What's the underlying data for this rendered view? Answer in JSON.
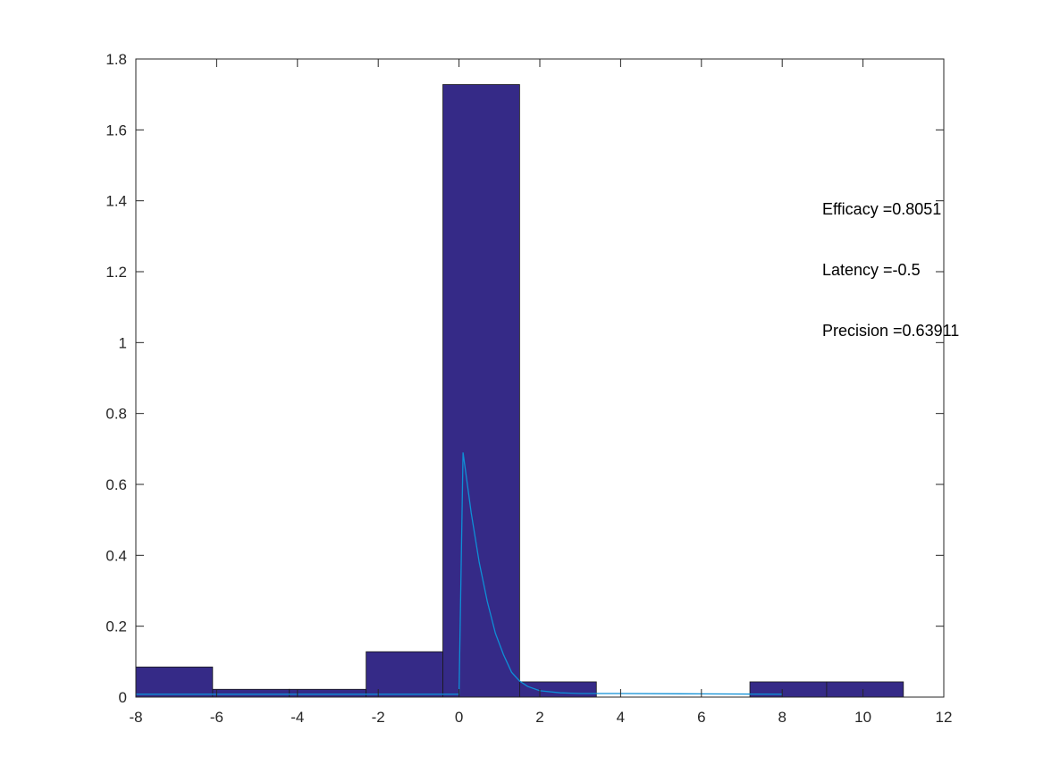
{
  "chart_data": {
    "type": "bar",
    "title": "",
    "xlabel": "",
    "ylabel": "",
    "xlim": [
      -8,
      12
    ],
    "ylim": [
      0,
      1.8
    ],
    "xticks": [
      -8,
      -6,
      -4,
      -2,
      0,
      2,
      4,
      6,
      8,
      10,
      12
    ],
    "xtick_labels": [
      "-8",
      "-6",
      "-4",
      "-2",
      "0",
      "2",
      "4",
      "6",
      "8",
      "10",
      "12"
    ],
    "yticks": [
      0,
      0.2,
      0.4,
      0.6,
      0.8,
      1.0,
      1.2,
      1.4,
      1.6,
      1.8
    ],
    "ytick_labels": [
      "0",
      "0.2",
      "0.4",
      "0.6",
      "0.8",
      "1",
      "1.2",
      "1.4",
      "1.6",
      "1.8"
    ],
    "grid": false,
    "bins": [
      {
        "x0": -8.0,
        "x1": -6.1,
        "value": 0.085
      },
      {
        "x0": -6.1,
        "x1": -4.2,
        "value": 0.022
      },
      {
        "x0": -4.2,
        "x1": -2.3,
        "value": 0.022
      },
      {
        "x0": -2.3,
        "x1": -0.4,
        "value": 0.128
      },
      {
        "x0": -0.4,
        "x1": 1.5,
        "value": 1.728
      },
      {
        "x0": 1.5,
        "x1": 3.4,
        "value": 0.043
      },
      {
        "x0": 3.4,
        "x1": 5.3,
        "value": 0.0
      },
      {
        "x0": 5.3,
        "x1": 7.2,
        "value": 0.0
      },
      {
        "x0": 7.2,
        "x1": 9.1,
        "value": 0.043
      },
      {
        "x0": 9.1,
        "x1": 11.0,
        "value": 0.043
      }
    ],
    "line": {
      "x": [
        -8,
        -6,
        -4,
        -2,
        -0.2,
        0,
        0.1,
        0.3,
        0.5,
        0.7,
        0.9,
        1.1,
        1.3,
        1.5,
        1.7,
        2.0,
        2.5,
        3,
        4,
        6,
        8
      ],
      "y": [
        0.008,
        0.008,
        0.008,
        0.008,
        0.008,
        0.008,
        0.69,
        0.52,
        0.38,
        0.27,
        0.18,
        0.12,
        0.07,
        0.045,
        0.03,
        0.018,
        0.012,
        0.01,
        0.01,
        0.009,
        0.008
      ]
    },
    "annotations": [
      "Efficacy =0.8051",
      "Latency =-0.5",
      "Precision =0.63911"
    ]
  },
  "colors": {
    "bar_fill": "#352a87",
    "bar_edge": "#1a1a1a",
    "line": "#0e8fd6",
    "axis": "#262626"
  }
}
